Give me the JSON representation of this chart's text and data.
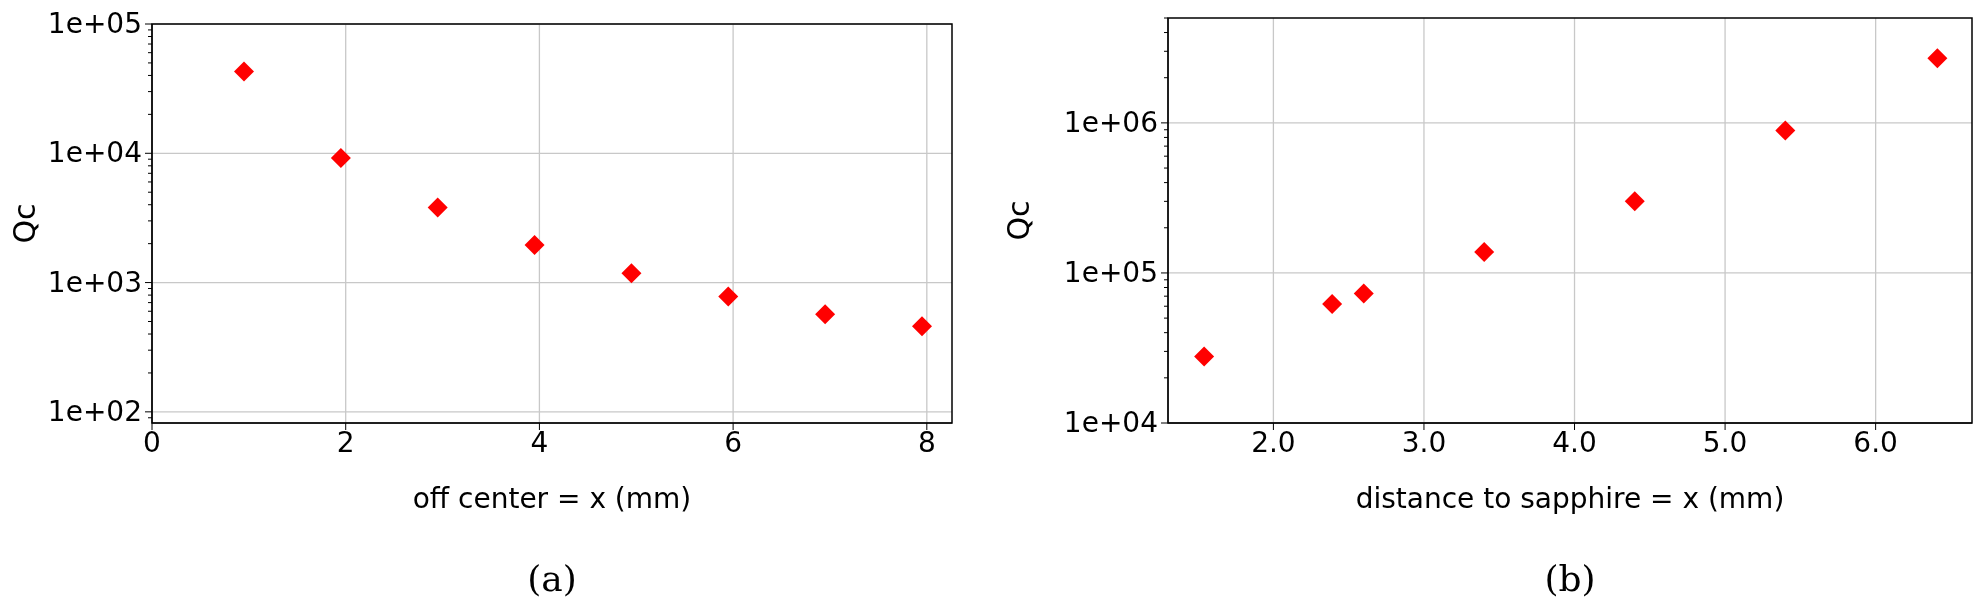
{
  "chart_data": [
    {
      "type": "scatter",
      "xlabel": "off center = x (mm)",
      "ylabel": "Qc",
      "annotations": [
        "(a)"
      ],
      "log": "y",
      "grid": true,
      "marker": "diamond",
      "x": [
        0.95,
        1.95,
        2.95,
        3.95,
        4.95,
        5.95,
        6.95,
        7.95
      ],
      "series": [
        {
          "color": "#ff0000",
          "values": [
            43000,
            9200,
            3800,
            1950,
            1180,
            780,
            570,
            460
          ]
        }
      ],
      "xlim": [
        0,
        8.26
      ],
      "xticks": [
        0,
        2,
        4,
        6,
        8
      ],
      "ylim": [
        82,
        100000
      ],
      "yticks": [
        {
          "value": 90,
          "label": null
        },
        {
          "value": 100,
          "label": "1e+02"
        },
        {
          "value": 200,
          "label": null
        },
        {
          "value": 300,
          "label": null
        },
        {
          "value": 400,
          "label": null
        },
        {
          "value": 500,
          "label": null
        },
        {
          "value": 600,
          "label": null
        },
        {
          "value": 700,
          "label": null
        },
        {
          "value": 800,
          "label": null
        },
        {
          "value": 900,
          "label": null
        },
        {
          "value": 1000,
          "label": "1e+03"
        },
        {
          "value": 2000,
          "label": null
        },
        {
          "value": 3000,
          "label": null
        },
        {
          "value": 4000,
          "label": null
        },
        {
          "value": 5000,
          "label": null
        },
        {
          "value": 6000,
          "label": null
        },
        {
          "value": 7000,
          "label": null
        },
        {
          "value": 8000,
          "label": null
        },
        {
          "value": 9000,
          "label": null
        },
        {
          "value": 10000,
          "label": "1e+04"
        },
        {
          "value": 20000,
          "label": null
        },
        {
          "value": 30000,
          "label": null
        },
        {
          "value": 40000,
          "label": null
        },
        {
          "value": 50000,
          "label": null
        },
        {
          "value": 60000,
          "label": null
        },
        {
          "value": 70000,
          "label": null
        },
        {
          "value": 80000,
          "label": null
        },
        {
          "value": 90000,
          "label": null
        },
        {
          "value": 100000,
          "label": "1e+05"
        }
      ]
    },
    {
      "type": "scatter",
      "xlabel": "distance to sapphire = x (mm)",
      "ylabel": "Qc",
      "annotations": [
        "(b)"
      ],
      "log": "y",
      "grid": true,
      "marker": "diamond",
      "x": [
        1.54,
        2.39,
        2.6,
        3.4,
        4.4,
        5.4,
        6.41
      ],
      "series": [
        {
          "color": "#ff0000",
          "values": [
            27700,
            62000,
            73000,
            138000,
            300000,
            890000,
            2700000
          ]
        }
      ],
      "xlim": [
        1.3,
        6.64
      ],
      "xticks": [
        {
          "value": 2,
          "label": "2.0"
        },
        {
          "value": 3,
          "label": "3.0"
        },
        {
          "value": 4,
          "label": "4.0"
        },
        {
          "value": 5,
          "label": "5.0"
        },
        {
          "value": 6,
          "label": "6.0"
        }
      ],
      "ylim": [
        10000,
        5000000
      ],
      "yticks": [
        {
          "value": 10000,
          "label": "1e+04"
        },
        {
          "value": 20000,
          "label": null
        },
        {
          "value": 30000,
          "label": null
        },
        {
          "value": 40000,
          "label": null
        },
        {
          "value": 50000,
          "label": null
        },
        {
          "value": 60000,
          "label": null
        },
        {
          "value": 70000,
          "label": null
        },
        {
          "value": 80000,
          "label": null
        },
        {
          "value": 90000,
          "label": null
        },
        {
          "value": 100000,
          "label": "1e+05"
        },
        {
          "value": 200000,
          "label": null
        },
        {
          "value": 300000,
          "label": null
        },
        {
          "value": 400000,
          "label": null
        },
        {
          "value": 500000,
          "label": null
        },
        {
          "value": 600000,
          "label": null
        },
        {
          "value": 700000,
          "label": null
        },
        {
          "value": 800000,
          "label": null
        },
        {
          "value": 900000,
          "label": null
        },
        {
          "value": 1000000,
          "label": "1e+06"
        },
        {
          "value": 2000000,
          "label": null
        },
        {
          "value": 3000000,
          "label": null
        },
        {
          "value": 4000000,
          "label": null
        },
        {
          "value": 5000000,
          "label": null
        }
      ]
    }
  ]
}
